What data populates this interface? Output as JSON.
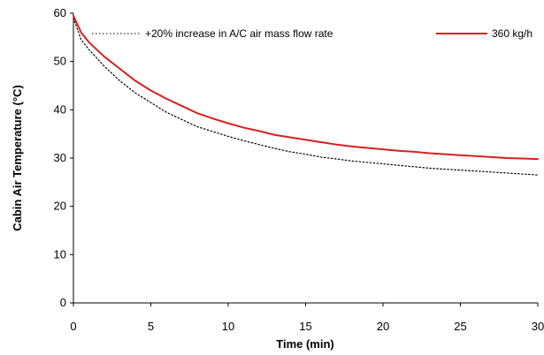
{
  "chart_data": {
    "type": "line",
    "title": "",
    "xlabel": "Time (min)",
    "ylabel": "Cabin Air Temperature (°C)",
    "xlim": [
      0,
      30
    ],
    "ylim": [
      0,
      60
    ],
    "xticks": [
      0,
      5,
      10,
      15,
      20,
      25,
      30
    ],
    "yticks": [
      0,
      10,
      20,
      30,
      40,
      50,
      60
    ],
    "xtick_labels": [
      "0",
      "5",
      "10",
      "15",
      "20",
      "25",
      "30"
    ],
    "ytick_labels": [
      "0",
      "10",
      "20",
      "30",
      "40",
      "50",
      "60"
    ],
    "grid": false,
    "legend_position": "top",
    "colors": {
      "series_1": "#000000",
      "series_2": "#d62020"
    },
    "x": [
      0,
      0.5,
      1,
      2,
      3,
      4,
      5,
      6,
      7,
      8,
      9,
      10,
      11,
      12,
      13,
      14,
      15,
      16,
      17,
      18,
      19,
      20,
      21,
      22,
      23,
      24,
      25,
      26,
      27,
      28,
      29,
      30
    ],
    "series": [
      {
        "name": "+20% increase in A/C air mass flow rate",
        "style": "dotted",
        "values": [
          59,
          54.5,
          52.5,
          49,
          46,
          43.5,
          41.5,
          39.5,
          38,
          36.5,
          35.5,
          34.5,
          33.6,
          32.8,
          32,
          31.3,
          30.8,
          30.2,
          29.8,
          29.4,
          29.1,
          28.8,
          28.5,
          28.2,
          27.9,
          27.7,
          27.5,
          27.3,
          27.1,
          26.9,
          26.7,
          26.5
        ]
      },
      {
        "name": "360 kg/h",
        "style": "solid",
        "values": [
          59.5,
          56,
          54,
          51,
          48.5,
          46,
          44,
          42.3,
          40.8,
          39.3,
          38.2,
          37.2,
          36.3,
          35.6,
          34.8,
          34.3,
          33.8,
          33.3,
          32.8,
          32.4,
          32.1,
          31.8,
          31.5,
          31.3,
          31.0,
          30.8,
          30.6,
          30.4,
          30.2,
          30.0,
          29.9,
          29.8
        ]
      }
    ]
  }
}
